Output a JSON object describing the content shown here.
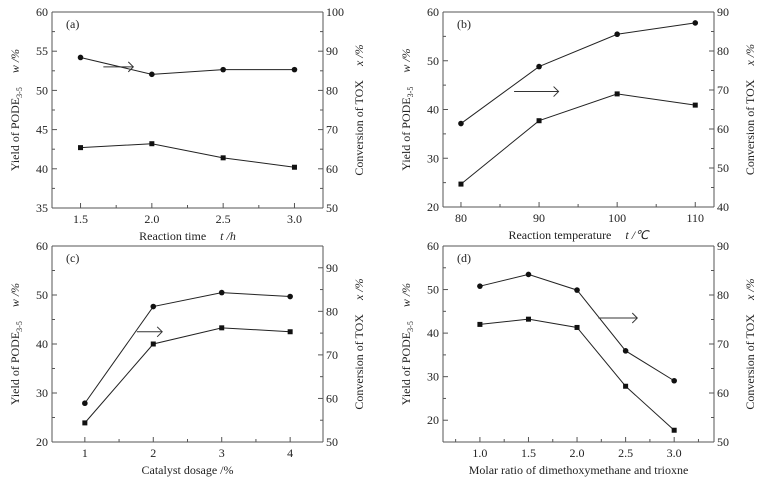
{
  "chart_data": [
    {
      "type": "line",
      "panel_label": "(a)",
      "xlabel": "Reaction time",
      "xlabel_unit": "t /h",
      "ylabel_left": "Yield of PODE",
      "ylabel_left_sub": "3-5",
      "ylabel_left_unit": "w /%",
      "ylabel_right": "Conversion of TOX",
      "ylabel_right_unit": "x /%",
      "xlim": [
        1.3,
        3.2
      ],
      "ylim_left": [
        35,
        60
      ],
      "ylim_right": [
        50,
        100
      ],
      "x_ticks": [
        1.5,
        2.0,
        2.5,
        3.0
      ],
      "x_tick_labels": [
        "1.5",
        "2.0",
        "2.5",
        "3.0"
      ],
      "x_minor_ticks": [
        1.75,
        2.25,
        2.75
      ],
      "y_left_ticks": [
        35,
        40,
        45,
        50,
        55,
        60
      ],
      "y_left_minor_ticks": [
        37.5,
        42.5,
        47.5,
        52.5,
        57.5
      ],
      "y_right_ticks": [
        50,
        60,
        70,
        80,
        90,
        100
      ],
      "y_right_minor_ticks": [
        55,
        65,
        75,
        85,
        95
      ],
      "x": [
        1.5,
        2.0,
        2.5,
        3.0
      ],
      "series": [
        {
          "name": "Yield of PODE3-5",
          "axis": "left",
          "marker": "square",
          "values": [
            42.7,
            43.2,
            41.4,
            40.2
          ]
        },
        {
          "name": "Conversion of TOX",
          "axis": "right",
          "marker": "circle",
          "values": [
            88.4,
            84.1,
            85.3,
            85.3
          ]
        }
      ],
      "annotation": {
        "type": "arrow",
        "points_to": "right-axis",
        "from": [
          1.66,
          86.0
        ],
        "to": [
          1.87,
          86.0
        ]
      }
    },
    {
      "type": "line",
      "panel_label": "(b)",
      "xlabel": "Reaction temperature",
      "xlabel_unit": "t /℃",
      "ylabel_left": "Yield of PODE",
      "ylabel_left_sub": "3-5",
      "ylabel_left_unit": "w /%",
      "ylabel_right": "Conversion of TOX",
      "ylabel_right_unit": "x /%",
      "xlim": [
        77.7,
        112.4
      ],
      "ylim_left": [
        20,
        60
      ],
      "ylim_right": [
        40,
        90
      ],
      "x_ticks": [
        80,
        90,
        100,
        110
      ],
      "x_tick_labels": [
        "80",
        "90",
        "100",
        "110"
      ],
      "x_minor_ticks": [
        85,
        95,
        105
      ],
      "y_left_ticks": [
        20,
        30,
        40,
        50,
        60
      ],
      "y_left_minor_ticks": [
        25,
        35,
        45,
        55
      ],
      "y_right_ticks": [
        40,
        50,
        60,
        70,
        80,
        90
      ],
      "y_right_minor_ticks": [
        45,
        55,
        65,
        75,
        85
      ],
      "x": [
        80,
        90,
        100,
        110
      ],
      "series": [
        {
          "name": "Yield of PODE3-5",
          "axis": "left",
          "marker": "square",
          "values": [
            24.7,
            37.7,
            43.2,
            40.9
          ]
        },
        {
          "name": "Conversion of TOX",
          "axis": "right",
          "marker": "circle",
          "values": [
            61.4,
            76.0,
            84.3,
            87.2
          ]
        }
      ],
      "annotation": {
        "type": "arrow",
        "points_to": "right-axis",
        "from": [
          86.8,
          69.6
        ],
        "to": [
          92.5,
          69.6
        ]
      }
    },
    {
      "type": "line",
      "panel_label": "(c)",
      "xlabel": "Catalyst dosage /%",
      "xlabel_unit": "",
      "ylabel_left": "Yield of PODE",
      "ylabel_left_sub": "3-5",
      "ylabel_left_unit": "w /%",
      "ylabel_right": "Conversion of TOX",
      "ylabel_right_unit": "x /%",
      "xlim": [
        0.52,
        4.48
      ],
      "ylim_left": [
        20,
        60
      ],
      "ylim_right": [
        50,
        95
      ],
      "x_ticks": [
        1,
        2,
        3,
        4
      ],
      "x_tick_labels": [
        "1",
        "2",
        "3",
        "4"
      ],
      "x_minor_ticks": [
        1.5,
        2.5,
        3.5
      ],
      "y_left_ticks": [
        20,
        30,
        40,
        50,
        60
      ],
      "y_left_minor_ticks": [
        25,
        35,
        45,
        55
      ],
      "y_right_ticks": [
        50,
        60,
        70,
        80,
        90
      ],
      "y_right_minor_ticks": [
        55,
        65,
        75,
        85
      ],
      "x": [
        1,
        2,
        3,
        4
      ],
      "series": [
        {
          "name": "Yield of PODE3-5",
          "axis": "left",
          "marker": "square",
          "values": [
            23.9,
            40.0,
            43.3,
            42.5
          ]
        },
        {
          "name": "Conversion of TOX",
          "axis": "right",
          "marker": "circle",
          "values": [
            58.9,
            81.1,
            84.3,
            83.4
          ]
        }
      ],
      "annotation": {
        "type": "arrow",
        "points_to": "right-axis",
        "from": [
          1.76,
          75.3
        ],
        "to": [
          2.13,
          75.3
        ]
      }
    },
    {
      "type": "line",
      "panel_label": "(d)",
      "xlabel": "Molar ratio of dimethoxymethane and trioxne",
      "xlabel_unit": "",
      "ylabel_left": "Yield of PODE",
      "ylabel_left_sub": "3-5",
      "ylabel_left_unit": "w /%",
      "ylabel_right": "Conversion of TOX",
      "ylabel_right_unit": "x /%",
      "xlim": [
        0.62,
        3.41
      ],
      "ylim_left": [
        15,
        60
      ],
      "ylim_right": [
        50,
        90
      ],
      "x_ticks": [
        1.0,
        1.5,
        2.0,
        2.5,
        3.0
      ],
      "x_tick_labels": [
        "1.0",
        "1.5",
        "2.0",
        "2.5",
        "3.0"
      ],
      "x_minor_ticks": [
        0.75,
        1.25,
        1.75,
        2.25,
        2.75,
        3.25
      ],
      "y_left_ticks": [
        20,
        30,
        40,
        50,
        60
      ],
      "y_left_minor_ticks": [
        25,
        35,
        45,
        55
      ],
      "y_right_ticks": [
        50,
        60,
        70,
        80,
        90
      ],
      "y_right_minor_ticks": [
        55,
        65,
        75,
        85
      ],
      "x": [
        1.0,
        1.5,
        2.0,
        2.5,
        3.0
      ],
      "series": [
        {
          "name": "Yield of PODE3-5",
          "axis": "left",
          "marker": "square",
          "values": [
            42.0,
            43.2,
            41.3,
            27.8,
            17.7
          ]
        },
        {
          "name": "Conversion of TOX",
          "axis": "right",
          "marker": "circle",
          "values": [
            81.8,
            84.2,
            81.0,
            68.6,
            62.5
          ]
        }
      ],
      "annotation": {
        "type": "arrow",
        "points_to": "right-axis",
        "from": [
          2.22,
          75.3
        ],
        "to": [
          2.62,
          75.3
        ]
      }
    }
  ]
}
